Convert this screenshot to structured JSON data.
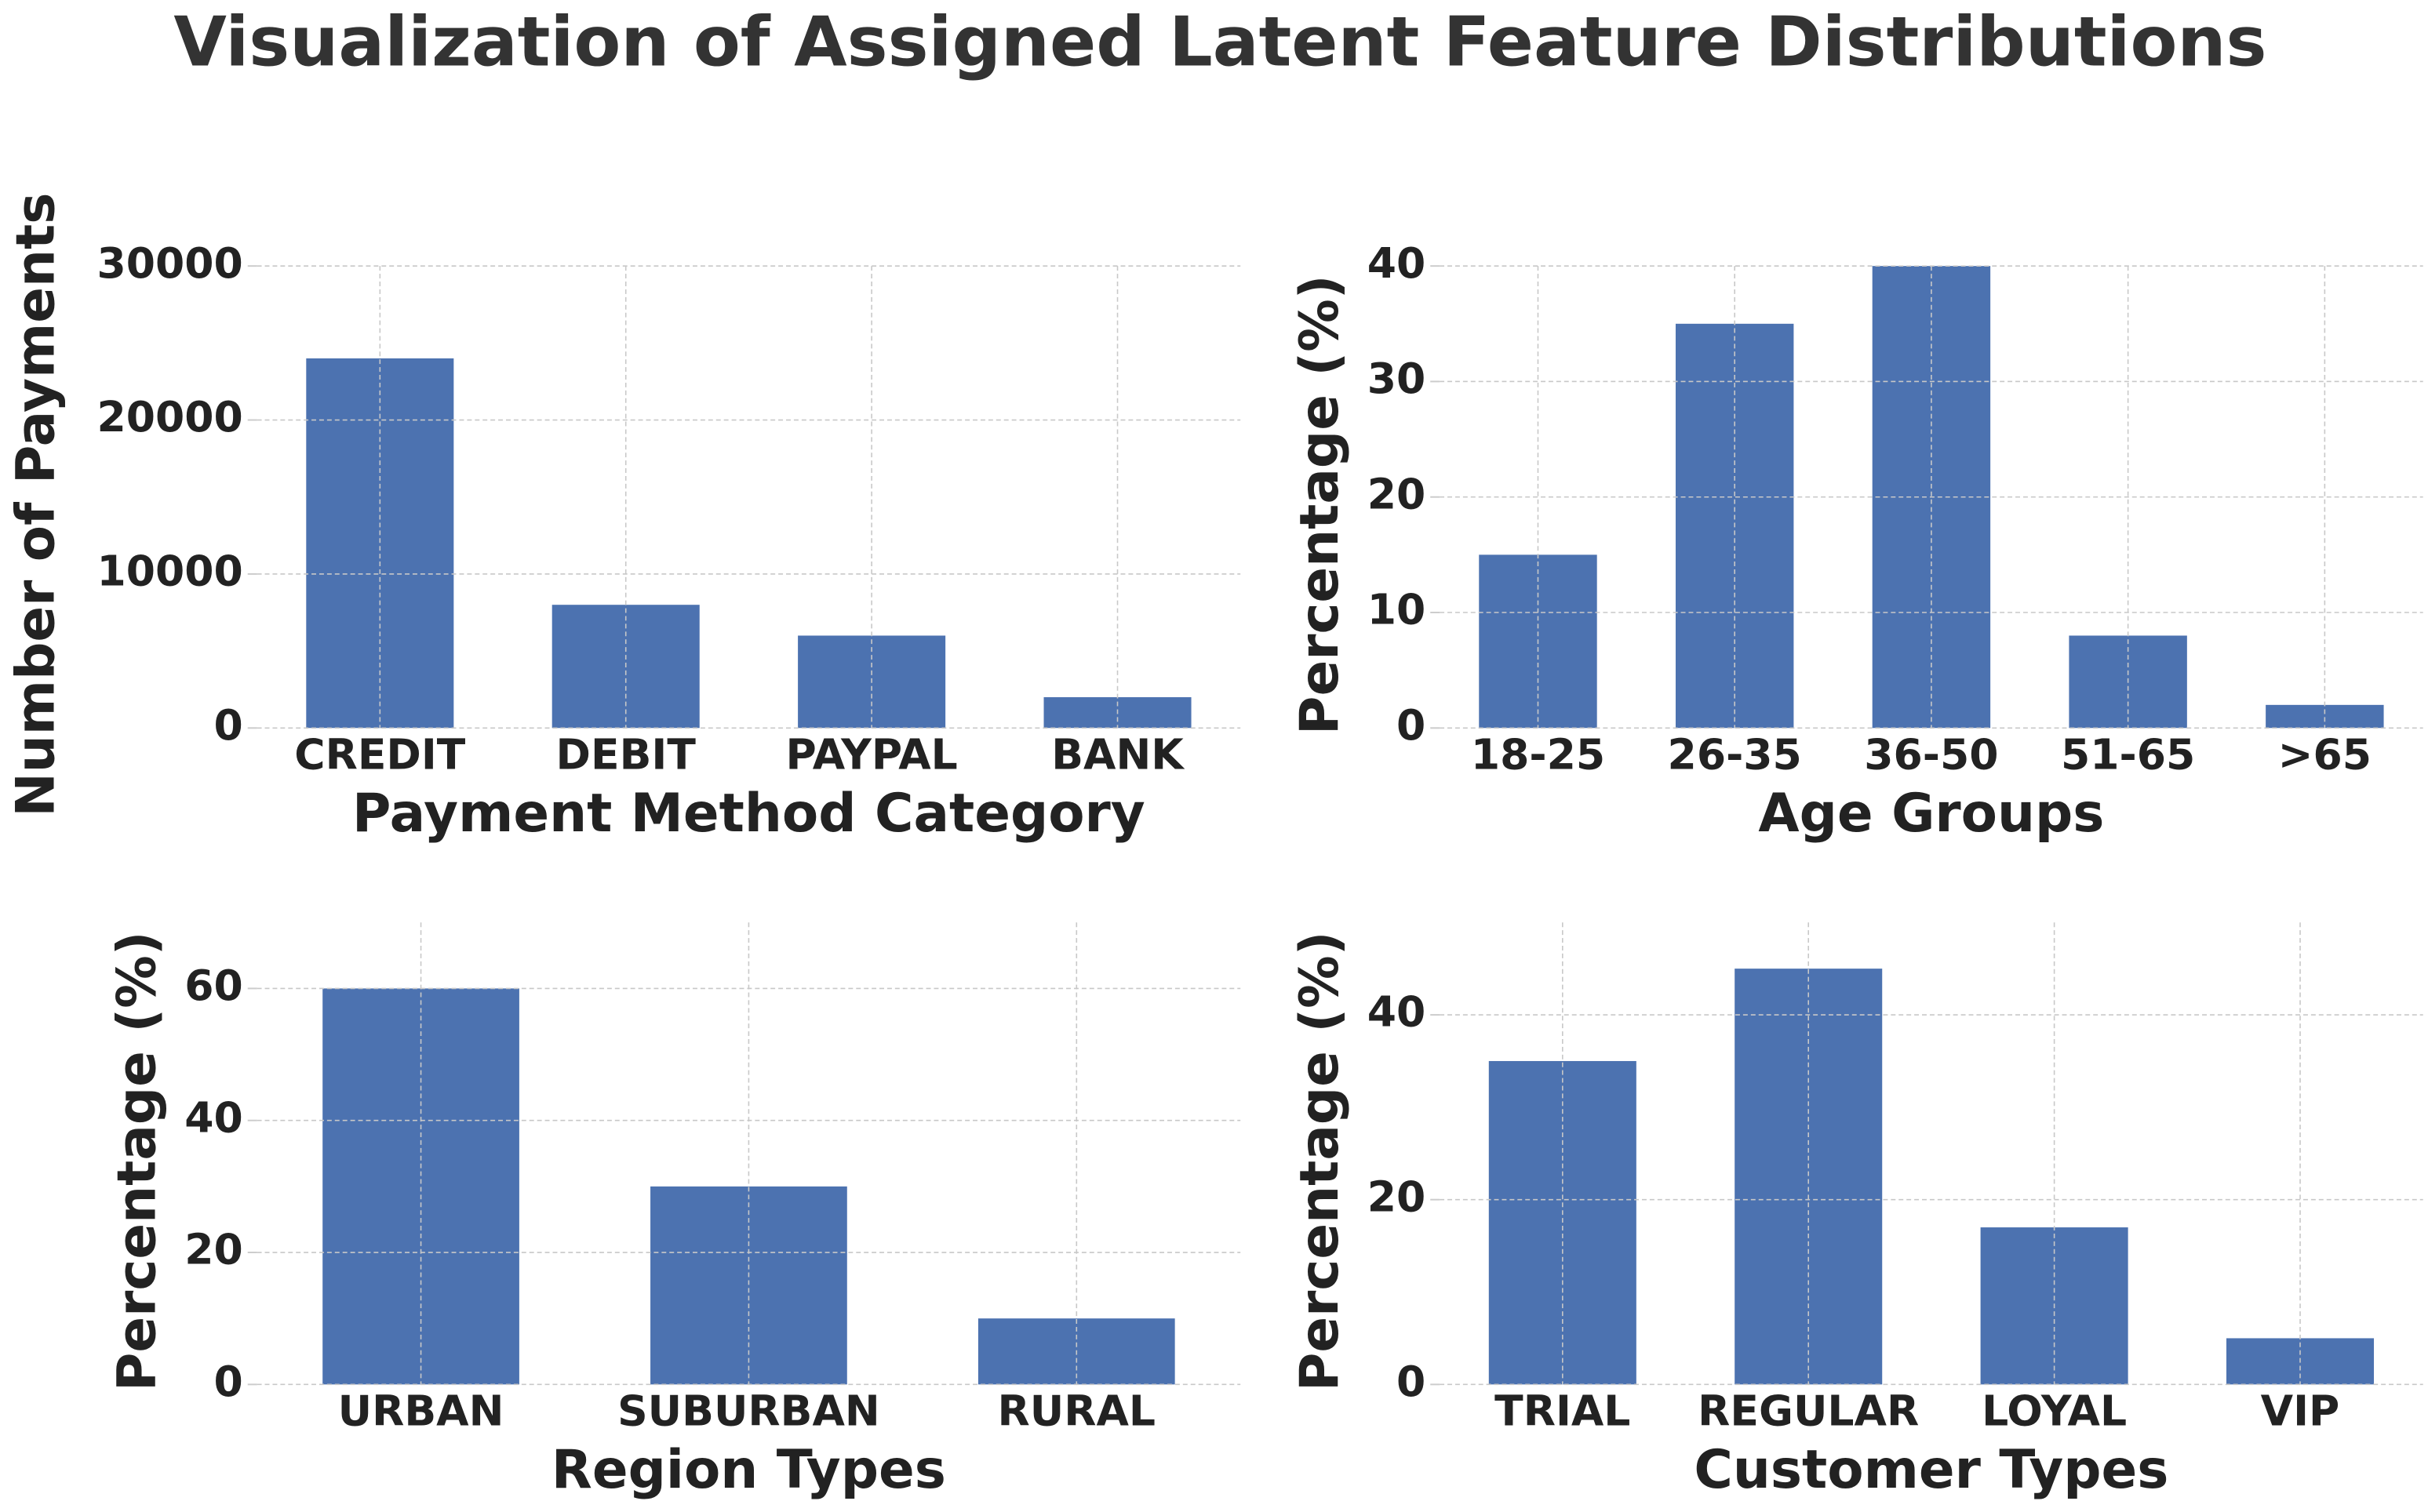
{
  "chart_data": [
    {
      "type": "bar",
      "title": "Visualization of Assigned Latent Feature Distributions",
      "x_label": "Payment Method Category",
      "y_label": "Number of Payments",
      "categories": [
        "CREDIT",
        "DEBIT",
        "PAYPAL",
        "BANK"
      ],
      "values": [
        24000,
        8000,
        6000,
        2000
      ],
      "color": "#4c72b0",
      "ylim": [
        0,
        30000
      ],
      "yticks": [
        0,
        10000,
        20000,
        30000
      ],
      "grid": true
    },
    {
      "type": "bar",
      "x_label": "Age Groups",
      "y_label": "Percentage (%)",
      "categories": [
        "18-25",
        "26-35",
        "36-50",
        "51-65",
        ">65"
      ],
      "values": [
        15,
        35,
        40,
        8,
        2
      ],
      "color": "#4c72b0",
      "ylim": [
        0,
        40
      ],
      "yticks": [
        0,
        10,
        20,
        30,
        40
      ],
      "grid": true
    },
    {
      "type": "bar",
      "x_label": "Region Types",
      "y_label": "Percentage (%)",
      "categories": [
        "URBAN",
        "SUBURBAN",
        "RURAL"
      ],
      "values": [
        60,
        30,
        10
      ],
      "color": "#4c72b0",
      "ylim": [
        0,
        70
      ],
      "yticks": [
        0,
        20,
        40,
        60
      ],
      "grid": true
    },
    {
      "type": "bar",
      "x_label": "Customer Types",
      "y_label": "Percentage (%)",
      "categories": [
        "TRIAL",
        "REGULAR",
        "LOYAL",
        "VIP"
      ],
      "values": [
        35,
        45,
        17,
        5
      ],
      "color": "#4c72b0",
      "ylim": [
        0,
        50
      ],
      "yticks": [
        0,
        20,
        40
      ],
      "grid": true
    }
  ]
}
